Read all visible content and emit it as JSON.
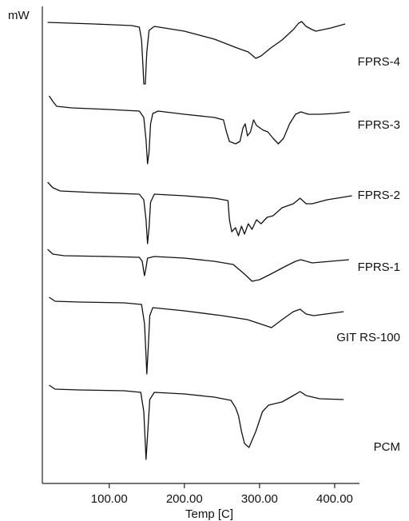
{
  "chart_data": {
    "type": "line",
    "ylabel": "mW",
    "xlabel": "Temp [C]",
    "xlim": [
      11,
      433
    ],
    "ylim": [
      0,
      600
    ],
    "xticks": [
      {
        "value": 100,
        "label": "100.00"
      },
      {
        "value": 200,
        "label": "200.00"
      },
      {
        "value": 300,
        "label": "300.00"
      },
      {
        "value": 400,
        "label": "400.00"
      }
    ],
    "series": [
      {
        "name": "FPRS-4",
        "color": "#111111",
        "x": [
          18,
          80,
          130,
          140,
          143,
          145,
          146,
          148,
          150,
          153,
          160,
          200,
          240,
          270,
          285,
          295,
          302,
          315,
          330,
          345,
          352,
          356,
          362,
          370,
          375,
          395,
          414
        ],
        "values": [
          577,
          575,
          573,
          571,
          555,
          520,
          500,
          500,
          540,
          567,
          572,
          566,
          556,
          545,
          540,
          532,
          535,
          545,
          555,
          568,
          576,
          578,
          572,
          568,
          566,
          570,
          575
        ]
      },
      {
        "name": "FPRS-3",
        "color": "#111111",
        "x": [
          20,
          25,
          30,
          50,
          100,
          140,
          146,
          149,
          151,
          153,
          155,
          158,
          165,
          200,
          240,
          252,
          256,
          260,
          268,
          274,
          278,
          281,
          284,
          288,
          292,
          296,
          305,
          311,
          318,
          325,
          332,
          340,
          348,
          355,
          365,
          380,
          400,
          420
        ],
        "values": [
          485,
          478,
          472,
          470,
          468,
          466,
          458,
          430,
          400,
          415,
          450,
          463,
          466,
          462,
          458,
          455,
          440,
          428,
          425,
          428,
          445,
          450,
          435,
          440,
          455,
          448,
          442,
          440,
          432,
          425,
          432,
          450,
          462,
          465,
          462,
          462,
          463,
          465
        ]
      },
      {
        "name": "FPRS-2",
        "color": "#111111",
        "x": [
          18,
          25,
          35,
          80,
          140,
          146,
          149,
          151,
          153,
          155,
          160,
          200,
          240,
          258,
          260,
          263,
          268,
          272,
          276,
          280,
          285,
          290,
          296,
          302,
          310,
          318,
          330,
          345,
          354,
          362,
          370,
          390,
          423
        ],
        "values": [
          377,
          370,
          366,
          364,
          362,
          355,
          330,
          300,
          320,
          352,
          362,
          360,
          357,
          354,
          330,
          315,
          320,
          310,
          322,
          312,
          325,
          318,
          330,
          325,
          333,
          335,
          345,
          350,
          357,
          350,
          350,
          355,
          360
        ]
      },
      {
        "name": "FPRS-1",
        "color": "#111111",
        "x": [
          18,
          25,
          40,
          100,
          140,
          144,
          146,
          147,
          149,
          151,
          160,
          200,
          240,
          265,
          280,
          290,
          300,
          315,
          335,
          348,
          355,
          370,
          419
        ],
        "values": [
          293,
          287,
          285,
          284,
          283,
          278,
          265,
          260,
          270,
          282,
          284,
          282,
          278,
          274,
          262,
          253,
          255,
          262,
          272,
          278,
          280,
          276,
          280
        ]
      },
      {
        "name": "GIT RS-100",
        "color": "#111111",
        "x": [
          20,
          28,
          60,
          120,
          143,
          147,
          149,
          150,
          152,
          154,
          158,
          200,
          250,
          284,
          300,
          316,
          330,
          345,
          354,
          362,
          372,
          412
        ],
        "values": [
          233,
          228,
          227,
          226,
          224,
          200,
          160,
          137,
          170,
          210,
          220,
          216,
          210,
          205,
          200,
          195,
          205,
          215,
          218,
          212,
          210,
          215
        ]
      },
      {
        "name": "PCM",
        "color": "#111111",
        "x": [
          20,
          28,
          60,
          120,
          142,
          146,
          148,
          149,
          151,
          154,
          160,
          200,
          240,
          262,
          268,
          272,
          276,
          280,
          286,
          295,
          304,
          312,
          330,
          345,
          354,
          362,
          380,
          412
        ],
        "values": [
          123,
          118,
          117,
          116,
          114,
          90,
          50,
          30,
          60,
          105,
          114,
          112,
          108,
          104,
          95,
          85,
          65,
          50,
          45,
          65,
          90,
          98,
          102,
          110,
          115,
          110,
          106,
          105
        ]
      }
    ]
  }
}
